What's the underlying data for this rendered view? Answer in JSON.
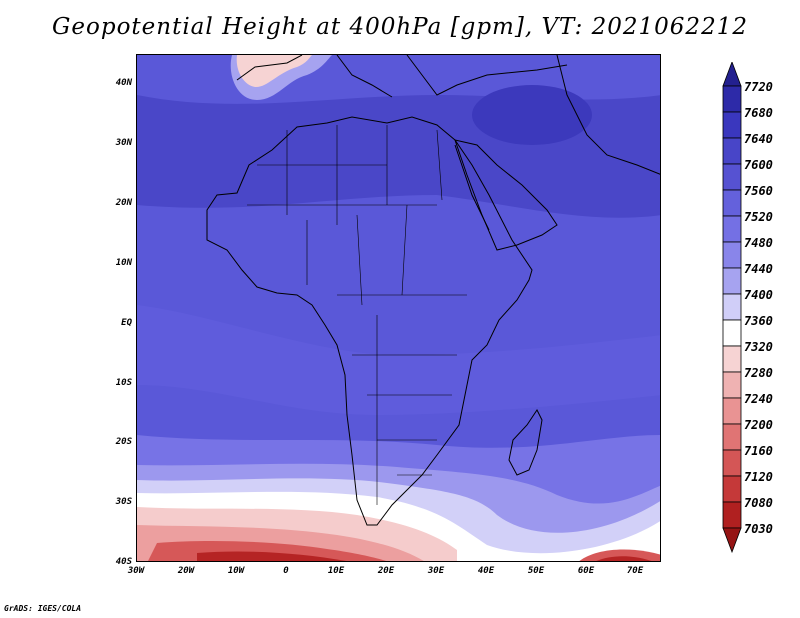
{
  "title": "Geopotential Height at 400hPa [gpm], VT: 2021062212",
  "credit": "GrADS: IGES/COLA",
  "map": {
    "lat_labels": [
      "40N",
      "30N",
      "20N",
      "10N",
      "EQ",
      "10S",
      "20S",
      "30S",
      "40S"
    ],
    "lon_labels": [
      "30W",
      "20W",
      "10W",
      "0",
      "10E",
      "20E",
      "30E",
      "40E",
      "50E",
      "60E",
      "70E"
    ],
    "lon_range": [
      -30,
      75
    ],
    "lat_range": [
      -40,
      45
    ]
  },
  "colorbar": {
    "levels": [
      "7720",
      "7680",
      "7640",
      "7600",
      "7560",
      "7520",
      "7480",
      "7440",
      "7400",
      "7360",
      "7320",
      "7280",
      "7240",
      "7200",
      "7160",
      "7120",
      "7080",
      "7030"
    ],
    "colors": [
      "#23208f",
      "#2d2aa8",
      "#3a37be",
      "#4845c8",
      "#5652d2",
      "#6461dc",
      "#7470e4",
      "#8985ea",
      "#a6a3f0",
      "#d0cef8",
      "#ffffff",
      "#f6d3d3",
      "#efb2b2",
      "#e99393",
      "#e07474",
      "#d45656",
      "#c53939",
      "#b02020",
      "#951414"
    ]
  },
  "lands": [
    "Africa",
    "Europe",
    "Arabian Peninsula",
    "Madagascar",
    "Iberian Peninsula"
  ]
}
